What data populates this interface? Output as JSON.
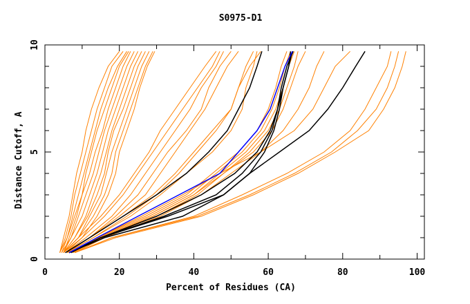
{
  "chart_data": {
    "type": "line",
    "title": "S0975-D1",
    "xlabel": "Percent of Residues (CA)",
    "ylabel": "Distance Cutoff, A",
    "xlim": [
      0,
      102
    ],
    "ylim": [
      0,
      10
    ],
    "x_ticks": [
      "0",
      "20",
      "40",
      "60",
      "80",
      "100"
    ],
    "y_ticks": [
      "0",
      "5",
      "10"
    ],
    "x_tick_values": [
      0,
      20,
      40,
      60,
      80,
      100
    ],
    "y_tick_values": [
      0,
      5,
      10
    ],
    "grid": false,
    "legend": "none",
    "colors": {
      "other": "#ff8000",
      "highlight": "#0000ff",
      "reference": "#000000"
    },
    "y_levels": [
      0.3,
      1,
      2,
      3,
      4,
      5,
      6,
      7,
      8,
      9,
      9.7
    ],
    "series": [
      {
        "name": "orange-1",
        "group": "other",
        "x": [
          4,
          5,
          6.5,
          7.5,
          8.5,
          10,
          11,
          12.5,
          14.5,
          17,
          20
        ]
      },
      {
        "name": "orange-2",
        "group": "other",
        "x": [
          4,
          5.5,
          7,
          8,
          9.5,
          11,
          12.5,
          14,
          16,
          18,
          21
        ]
      },
      {
        "name": "orange-3",
        "group": "other",
        "x": [
          4.5,
          6,
          7.5,
          9,
          10.5,
          12,
          13.5,
          15,
          17,
          19.5,
          22
        ]
      },
      {
        "name": "orange-4",
        "group": "other",
        "x": [
          4,
          6,
          8,
          10,
          11,
          12.5,
          14,
          16,
          18,
          20,
          22.5
        ]
      },
      {
        "name": "orange-5",
        "group": "other",
        "x": [
          5,
          6.5,
          8.5,
          10,
          12,
          13.5,
          15.5,
          17,
          19,
          21,
          23
        ]
      },
      {
        "name": "orange-6",
        "group": "other",
        "x": [
          4.5,
          7,
          9,
          11,
          13,
          14.5,
          16,
          18,
          20,
          22,
          24
        ]
      },
      {
        "name": "orange-7",
        "group": "other",
        "x": [
          5,
          7,
          10,
          12,
          14,
          15.5,
          17,
          19,
          21,
          23,
          25
        ]
      },
      {
        "name": "orange-8",
        "group": "other",
        "x": [
          5,
          8,
          11,
          13,
          15,
          16.5,
          18,
          20,
          22,
          24,
          26
        ]
      },
      {
        "name": "orange-9",
        "group": "other",
        "x": [
          5,
          8,
          11.5,
          14,
          16,
          17,
          18.5,
          21,
          23,
          25,
          27
        ]
      },
      {
        "name": "orange-10",
        "group": "other",
        "x": [
          5,
          9,
          12,
          15,
          16.5,
          18,
          20,
          22,
          24,
          26,
          28
        ]
      },
      {
        "name": "orange-11",
        "group": "other",
        "x": [
          5,
          9,
          13,
          16,
          18,
          19,
          21,
          23,
          25,
          27,
          29
        ]
      },
      {
        "name": "orange-12",
        "group": "other",
        "x": [
          5.5,
          10,
          14,
          17,
          19,
          20,
          22,
          24,
          25.5,
          27.5,
          29.5
        ]
      },
      {
        "name": "orange-13",
        "group": "other",
        "x": [
          5,
          9,
          15,
          20,
          24,
          28,
          31,
          35,
          39,
          43,
          46
        ]
      },
      {
        "name": "orange-14",
        "group": "other",
        "x": [
          5,
          10,
          16,
          21,
          25,
          29,
          33,
          37,
          41,
          45,
          47
        ]
      },
      {
        "name": "orange-15",
        "group": "other",
        "x": [
          5.5,
          11,
          18,
          23,
          27,
          31,
          35,
          39,
          42,
          46,
          48
        ]
      },
      {
        "name": "orange-16",
        "group": "other",
        "x": [
          6,
          12,
          19,
          25,
          29,
          33,
          38,
          42,
          44,
          47,
          50
        ]
      },
      {
        "name": "orange-17",
        "group": "other",
        "x": [
          6,
          12,
          20,
          27,
          31,
          35,
          39,
          43,
          46,
          49,
          52
        ]
      },
      {
        "name": "orange-18",
        "group": "other",
        "x": [
          6,
          13,
          22,
          30,
          36,
          41,
          46,
          50,
          52,
          54,
          56
        ]
      },
      {
        "name": "orange-19",
        "group": "other",
        "x": [
          6,
          13,
          23,
          31,
          38,
          45,
          50,
          53,
          54,
          56,
          57
        ]
      },
      {
        "name": "orange-20",
        "group": "other",
        "x": [
          6,
          12,
          21,
          29,
          35,
          40,
          45,
          50,
          52,
          55,
          58
        ]
      },
      {
        "name": "orange-21",
        "group": "other",
        "x": [
          7,
          14,
          27,
          38,
          45,
          52,
          57,
          60,
          62,
          63.5,
          65
        ]
      },
      {
        "name": "orange-22",
        "group": "other",
        "x": [
          7,
          14.5,
          28,
          39,
          46,
          53,
          58,
          61,
          63,
          64.5,
          66
        ]
      },
      {
        "name": "orange-23",
        "group": "other",
        "x": [
          7.5,
          15,
          29,
          40,
          47,
          54,
          59,
          62,
          64,
          65.5,
          67
        ]
      },
      {
        "name": "orange-24",
        "group": "other",
        "x": [
          7.5,
          15,
          29,
          40,
          48,
          55,
          60,
          63,
          65,
          67,
          68
        ]
      },
      {
        "name": "orange-25",
        "group": "other",
        "x": [
          8,
          15.5,
          30,
          41,
          48,
          56,
          61,
          64,
          66,
          68,
          70
        ]
      },
      {
        "name": "orange-26",
        "group": "other",
        "x": [
          8,
          16,
          31,
          42,
          50,
          58,
          64,
          68,
          71,
          73,
          75
        ]
      },
      {
        "name": "orange-27",
        "group": "other",
        "x": [
          7,
          14,
          26,
          37,
          47,
          58,
          67,
          72,
          75,
          78,
          82
        ]
      },
      {
        "name": "orange-28",
        "group": "other",
        "x": [
          8,
          18,
          40,
          53,
          65,
          75,
          82,
          86,
          89,
          92,
          93
        ]
      },
      {
        "name": "orange-29",
        "group": "other",
        "x": [
          8,
          18,
          41,
          55,
          67,
          77,
          84,
          89,
          92,
          94,
          95
        ]
      },
      {
        "name": "orange-30",
        "group": "other",
        "x": [
          8,
          19,
          42,
          56,
          68,
          78,
          87,
          91,
          94,
          96,
          97
        ]
      },
      {
        "name": "black-1",
        "group": "reference",
        "x": [
          5.5,
          12,
          21,
          30,
          38,
          44,
          49,
          52,
          55,
          57,
          58.3
        ]
      },
      {
        "name": "black-2",
        "group": "reference",
        "x": [
          6.5,
          15,
          32,
          46,
          53,
          58,
          61,
          62.5,
          63.5,
          65,
          66.7
        ]
      },
      {
        "name": "black-3",
        "group": "reference",
        "x": [
          6.5,
          15,
          33,
          48,
          55,
          59,
          61.5,
          63,
          64,
          65.5,
          66.5
        ]
      },
      {
        "name": "black-4",
        "group": "reference",
        "x": [
          6.5,
          16,
          37,
          48,
          55,
          63,
          71,
          76,
          80,
          83.5,
          86
        ]
      },
      {
        "name": "black-5",
        "group": "reference",
        "x": [
          7,
          15,
          30,
          42,
          51,
          57,
          60.5,
          62.5,
          64,
          65.5,
          66
        ]
      },
      {
        "name": "blue-1",
        "group": "highlight",
        "x": [
          6.5,
          14,
          25,
          36,
          47,
          52,
          57,
          60.5,
          62.5,
          64.5,
          66.5
        ]
      }
    ]
  }
}
